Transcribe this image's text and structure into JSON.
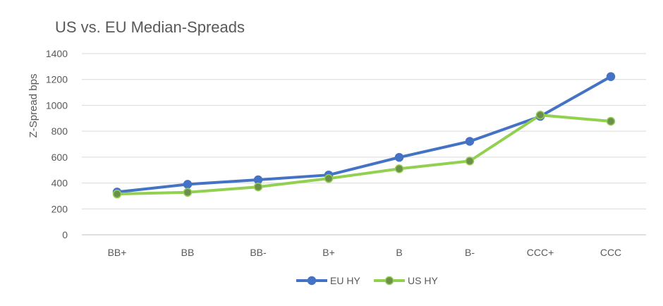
{
  "chart_data": {
    "type": "line",
    "title": "US vs. EU Median-Spreads",
    "xlabel": "",
    "ylabel": "Z-Spread bps",
    "categories": [
      "BB+",
      "BB",
      "BB-",
      "B+",
      "B",
      "B-",
      "CCC+",
      "CCC"
    ],
    "ylim": [
      0,
      1400
    ],
    "yticks": [
      0,
      200,
      400,
      600,
      800,
      1000,
      1200,
      1400
    ],
    "grid": true,
    "legend_position": "bottom",
    "series": [
      {
        "name": "EU HY",
        "color": "#4472c4",
        "marker_color": "#4472c4",
        "values": [
          330,
          390,
          425,
          462,
          598,
          722,
          915,
          1222
        ]
      },
      {
        "name": "US HY",
        "color": "#92d050",
        "marker_color": "#6e8f4c",
        "values": [
          315,
          328,
          370,
          435,
          510,
          570,
          925,
          877
        ]
      }
    ]
  }
}
